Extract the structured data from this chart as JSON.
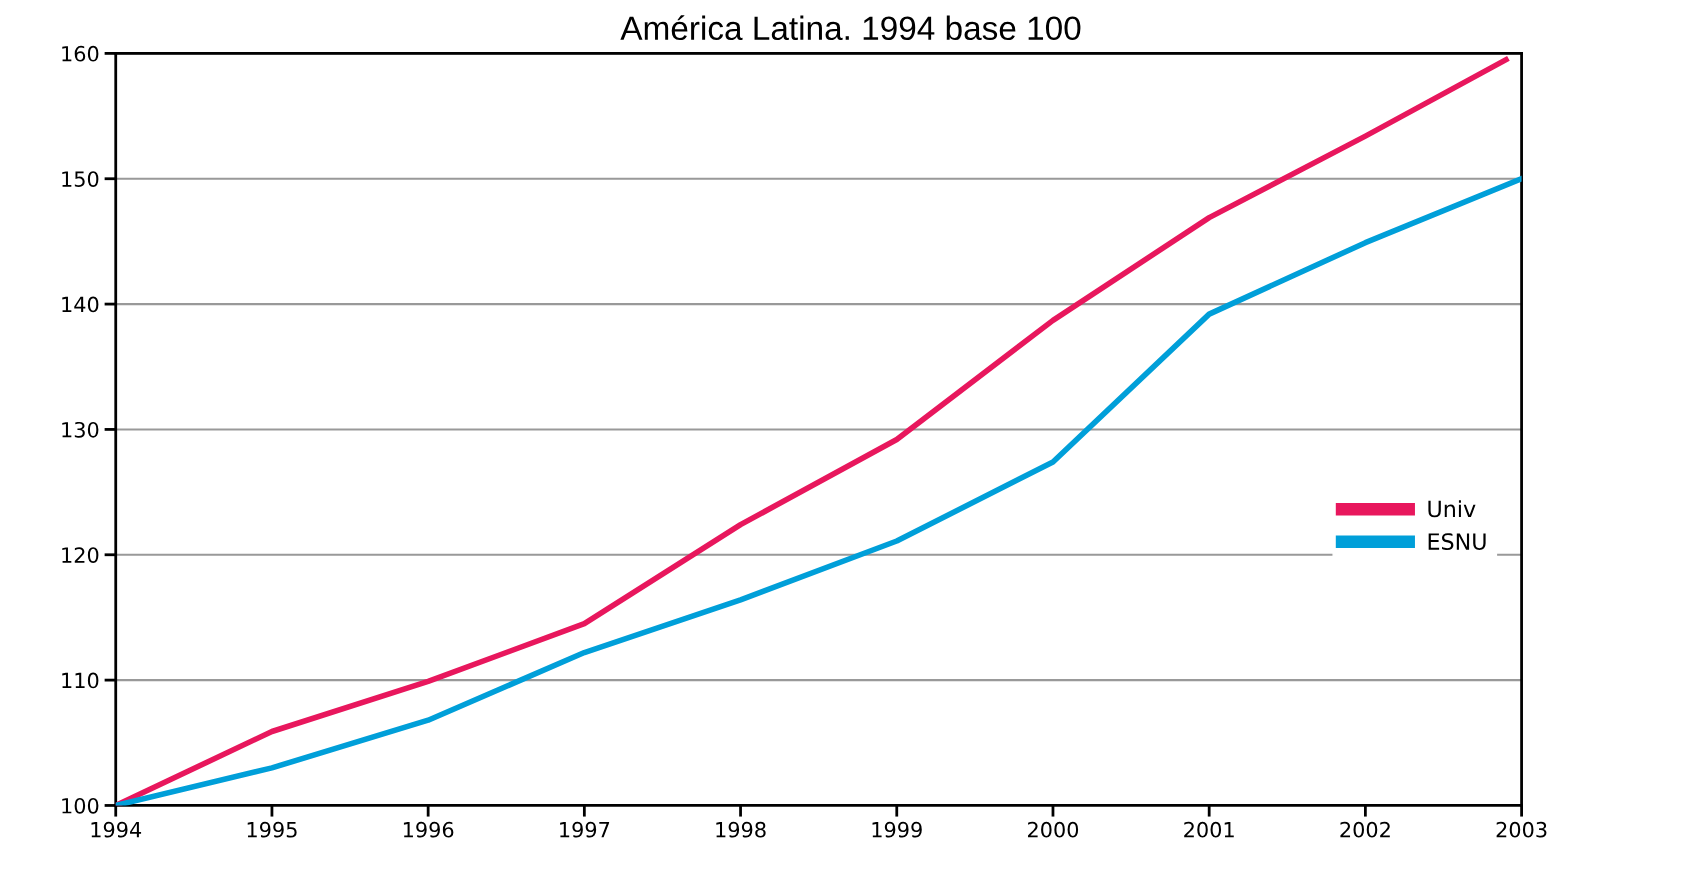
{
  "chart_data": {
    "type": "line",
    "title": "América Latina. 1994 base 100",
    "x": [
      1994,
      1995,
      1996,
      1997,
      1998,
      1999,
      2000,
      2001,
      2002,
      2003
    ],
    "series": [
      {
        "name": "Univ",
        "color": "#e8175d",
        "x": [
          1994,
          1995,
          1996,
          1997,
          1998,
          1999,
          2000,
          2001,
          2002,
          2002.9
        ],
        "values": [
          100,
          105.9,
          109.9,
          114.5,
          122.4,
          129.2,
          138.7,
          146.9,
          153.4,
          159.5
        ]
      },
      {
        "name": "ESNU",
        "color": "#009fd9",
        "values": [
          100,
          103,
          106.8,
          112.2,
          116.4,
          121.1,
          127.4,
          139.2,
          144.9,
          150
        ]
      }
    ],
    "xlim": [
      1994,
      2003
    ],
    "xticks": [
      1994,
      1995,
      1996,
      1997,
      1998,
      1999,
      2000,
      2001,
      2002,
      2003
    ],
    "ylim": [
      100,
      160
    ],
    "yticks": [
      100,
      110,
      120,
      130,
      140,
      150,
      160
    ],
    "grid": "y",
    "legend": "right",
    "marker": "none",
    "line_style": "solid"
  }
}
